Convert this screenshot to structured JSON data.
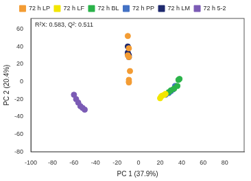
{
  "chart_data": {
    "type": "scatter",
    "annotation": "R²X: 0.583, Q²: 0.511",
    "x_label": "PC 1 (37.9%)",
    "y_label": "PC 2 (20.4%)",
    "xlim": [
      -100,
      98
    ],
    "ylim": [
      -80,
      72
    ],
    "xticks": [
      -100,
      -80,
      -60,
      -40,
      -20,
      0,
      20,
      40,
      60,
      80
    ],
    "yticks": [
      -80,
      -60,
      -40,
      -20,
      0,
      20,
      40,
      60
    ],
    "grid": false,
    "legend": "top",
    "series": [
      {
        "name": "72 h LP",
        "color": "#f39c34",
        "x": [
          -10,
          -9,
          -10,
          -9,
          -8,
          -9,
          -9,
          -9
        ],
        "values": [
          52,
          38,
          30,
          28,
          12,
          2,
          0,
          -1
        ]
      },
      {
        "name": "72 h LF",
        "color": "#f2e600",
        "x": [
          20,
          21,
          22,
          24,
          25
        ],
        "values": [
          -19,
          -17,
          -16,
          -15,
          -14
        ]
      },
      {
        "name": "72 h BL",
        "color": "#2bb34a",
        "x": [
          28,
          30,
          33,
          36,
          38,
          37
        ],
        "values": [
          -12,
          -10,
          -8,
          -5,
          3,
          2
        ]
      },
      {
        "name": "72 h PP",
        "color": "#4472c4",
        "x": [
          25,
          28,
          30,
          32,
          34
        ],
        "values": [
          -15,
          -13,
          -11,
          -9,
          -5
        ]
      },
      {
        "name": "72 h LM",
        "color": "#1f2a6e",
        "x": [
          -10,
          -10,
          -9,
          -9,
          -10
        ],
        "values": [
          40,
          33,
          30,
          28,
          31
        ]
      },
      {
        "name": "72 h 5-2",
        "color": "#7b5bb5",
        "x": [
          -60,
          -58,
          -56,
          -54,
          -52,
          -50
        ],
        "values": [
          -15,
          -20,
          -24,
          -28,
          -30,
          -32
        ]
      }
    ]
  }
}
